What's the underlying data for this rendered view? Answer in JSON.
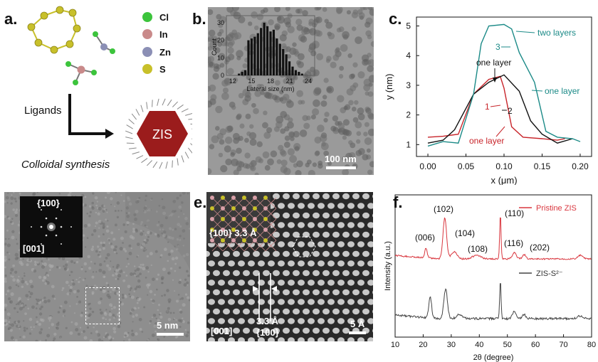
{
  "panels": {
    "a": {
      "label": "a.",
      "legend": [
        {
          "element": "Cl",
          "color": "#3cc43c"
        },
        {
          "element": "In",
          "color": "#c98a8a"
        },
        {
          "element": "Zn",
          "color": "#8b8fb5"
        },
        {
          "element": "S",
          "color": "#c8c02a"
        }
      ],
      "ligands_label": "Ligands",
      "product_label": "ZIS",
      "caption": "Colloidal synthesis"
    },
    "b": {
      "label": "b.",
      "scalebar": "100 nm",
      "inset_chart": {
        "type": "bar",
        "xlabel": "Lateral size (nm)",
        "ylabel": "Count",
        "x_ticks": [
          "12",
          "15",
          "18",
          "21",
          "24"
        ],
        "y_ticks": [
          "0",
          "10",
          "20",
          "30"
        ],
        "xlim": [
          11,
          25
        ],
        "ylim": [
          0,
          34
        ],
        "x": [
          13,
          13.5,
          14,
          14.5,
          15,
          15.5,
          16,
          16.5,
          17,
          17.5,
          18,
          18.5,
          19,
          19.5,
          20,
          20.5,
          21,
          21.5,
          22,
          22.5,
          23
        ],
        "values": [
          1,
          2,
          3,
          20,
          21,
          22,
          24,
          27,
          30,
          28,
          25,
          26,
          21,
          18,
          15,
          12,
          8,
          5,
          3,
          2,
          1
        ]
      }
    },
    "c": {
      "label": "c.",
      "chart": {
        "type": "line",
        "xlabel": "x (μm)",
        "ylabel": "y (nm)",
        "x_ticks": [
          "0.00",
          "0.05",
          "0.10",
          "0.15",
          "0.20"
        ],
        "y_ticks": [
          "1",
          "2",
          "3",
          "4",
          "5"
        ],
        "xlim": [
          -0.015,
          0.215
        ],
        "ylim": [
          0.6,
          5.3
        ],
        "series": [
          {
            "color": "#c8242a",
            "points": [
              [
                0,
                1.25
              ],
              [
                0.02,
                1.28
              ],
              [
                0.04,
                1.35
              ],
              [
                0.06,
                2.7
              ],
              [
                0.08,
                3.2
              ],
              [
                0.095,
                3.3
              ],
              [
                0.1,
                2.9
              ],
              [
                0.11,
                1.6
              ],
              [
                0.125,
                1.25
              ],
              [
                0.15,
                1.2
              ],
              [
                0.17,
                1.15
              ],
              [
                0.18,
                1.2
              ]
            ]
          },
          {
            "color": "#111111",
            "points": [
              [
                0,
                1.05
              ],
              [
                0.02,
                1.15
              ],
              [
                0.035,
                1.5
              ],
              [
                0.06,
                2.7
              ],
              [
                0.08,
                3.1
              ],
              [
                0.1,
                3.35
              ],
              [
                0.12,
                2.8
              ],
              [
                0.135,
                1.8
              ],
              [
                0.15,
                1.35
              ],
              [
                0.17,
                1.05
              ],
              [
                0.19,
                1.2
              ]
            ]
          },
          {
            "color": "#1b8a87",
            "points": [
              [
                0,
                0.95
              ],
              [
                0.02,
                1.1
              ],
              [
                0.04,
                1.05
              ],
              [
                0.06,
                2.7
              ],
              [
                0.07,
                4.4
              ],
              [
                0.08,
                5.0
              ],
              [
                0.1,
                5.05
              ],
              [
                0.11,
                4.9
              ],
              [
                0.12,
                4.1
              ],
              [
                0.14,
                3.1
              ],
              [
                0.155,
                1.45
              ],
              [
                0.17,
                1.25
              ],
              [
                0.19,
                1.2
              ],
              [
                0.2,
                1.1
              ]
            ]
          }
        ],
        "annotations": [
          {
            "text": "two layers",
            "color": "#1b8a87"
          },
          {
            "text": "3",
            "color": "#1b8a87"
          },
          {
            "text": "one layer",
            "color": "#111111"
          },
          {
            "text": "one layer",
            "color": "#1b8a87"
          },
          {
            "text": "1",
            "color": "#c8242a"
          },
          {
            "text": "2",
            "color": "#111111"
          },
          {
            "text": "one layer",
            "color": "#c8242a"
          }
        ]
      }
    },
    "d": {
      "label": "d.",
      "fft_top": "{100}",
      "fft_bottom": "[001]",
      "scalebar": "5 nm"
    },
    "e": {
      "label": "e.",
      "model_label": "{100} 3.3 Å",
      "spacing_value": "3.3 Å",
      "spacing_plane": "{100}",
      "zone_axis": "[001]",
      "scalebar": "5 Å"
    },
    "f": {
      "label": "f.",
      "chart": {
        "type": "line",
        "xlabel": "2θ (degree)",
        "ylabel": "Intensity (a.u.)",
        "x_ticks": [
          "10",
          "20",
          "30",
          "40",
          "50",
          "60",
          "70",
          "80"
        ],
        "xlim": [
          10,
          80
        ],
        "series": [
          {
            "name": "Pristine ZIS",
            "color": "#d9363e"
          },
          {
            "name": "ZIS-S²⁻",
            "color": "#444444"
          }
        ],
        "peaks": [
          "(006)",
          "(102)",
          "(104)",
          "(108)",
          "(110)",
          "(116)",
          "(202)"
        ]
      }
    }
  }
}
